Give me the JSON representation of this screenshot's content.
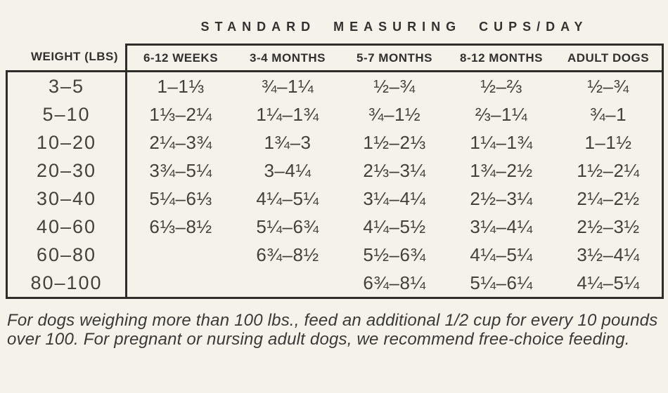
{
  "title": "STANDARD MEASURING CUPS/DAY",
  "table": {
    "corner_header": "WEIGHT (LBS)",
    "age_headers": [
      "6-12 WEEKS",
      "3-4 MONTHS",
      "5-7 MONTHS",
      "8-12 MONTHS",
      "ADULT DOGS"
    ],
    "rows": [
      {
        "weight": "3–5",
        "values": [
          "1–1⅓",
          "¾–1¼",
          "½–¾",
          "½–⅔",
          "½–¾"
        ]
      },
      {
        "weight": "5–10",
        "values": [
          "1⅓–2¼",
          "1¼–1¾",
          "¾–1½",
          "⅔–1¼",
          "¾–1"
        ]
      },
      {
        "weight": "10–20",
        "values": [
          "2¼–3¾",
          "1¾–3",
          "1½–2⅓",
          "1¼–1¾",
          "1–1½"
        ]
      },
      {
        "weight": "20–30",
        "values": [
          "3¾–5¼",
          "3–4¼",
          "2⅓–3¼",
          "1¾–2½",
          "1½–2¼"
        ]
      },
      {
        "weight": "30–40",
        "values": [
          "5¼–6⅓",
          "4¼–5¼",
          "3¼–4¼",
          "2½–3¼",
          "2¼–2½"
        ]
      },
      {
        "weight": "40–60",
        "values": [
          "6⅓–8½",
          "5¼–6¾",
          "4¼–5½",
          "3¼–4¼",
          "2½–3½"
        ]
      },
      {
        "weight": "60–80",
        "values": [
          "",
          "6¾–8½",
          "5½–6¾",
          "4¼–5¼",
          "3½–4¼"
        ]
      },
      {
        "weight": "80–100",
        "values": [
          "",
          "",
          "6¾–8¼",
          "5¼–6¼",
          "4¼–5¼"
        ]
      }
    ]
  },
  "footnote": "For dogs weighing more than 100 lbs., feed an additional 1/2 cup for every 10 pounds over 100. For pregnant or nursing adult dogs, we recommend free-choice feeding.",
  "colors": {
    "background": "#f5f2ec",
    "border": "#2e2d2a",
    "text": "#44413c"
  }
}
